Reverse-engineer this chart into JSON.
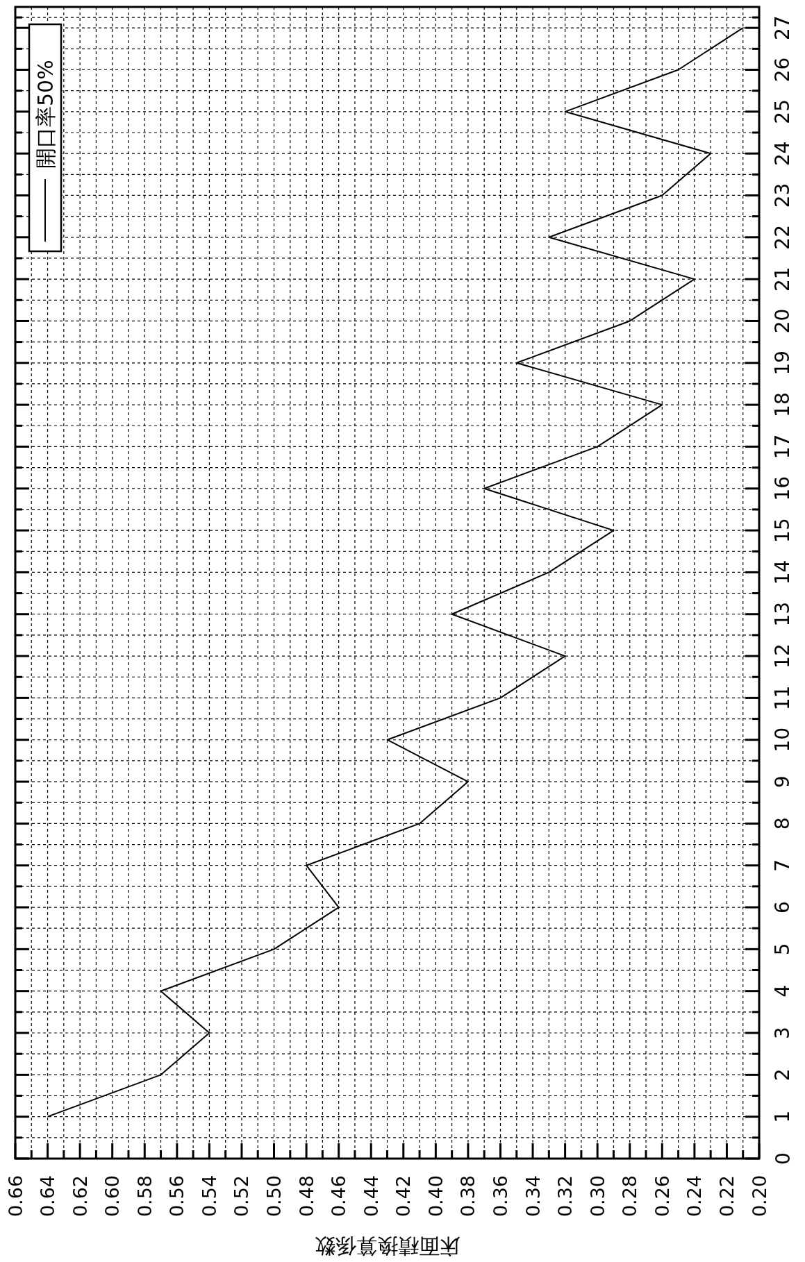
{
  "chart_data": {
    "type": "line",
    "xlabel": "床面積換算係数",
    "series": [
      {
        "name": "開口率50%",
        "color": "#000000",
        "x": [
          0.64,
          0.57,
          0.54,
          0.57,
          0.5,
          0.46,
          0.48,
          0.41,
          0.38,
          0.43,
          0.36,
          0.32,
          0.39,
          0.33,
          0.29,
          0.37,
          0.3,
          0.26,
          0.35,
          0.28,
          0.24,
          0.33,
          0.26,
          0.23,
          0.32,
          0.25,
          0.21
        ],
        "values": [
          1,
          2,
          3,
          4,
          5,
          6,
          7,
          8,
          9,
          10,
          11,
          12,
          13,
          14,
          15,
          16,
          17,
          18,
          19,
          20,
          21,
          22,
          23,
          24,
          25,
          26,
          27
        ]
      }
    ],
    "ylim": [
      0,
      27.5
    ],
    "yticks": [
      0,
      1,
      2,
      3,
      4,
      5,
      6,
      7,
      8,
      9,
      10,
      11,
      12,
      13,
      14,
      15,
      16,
      17,
      18,
      19,
      20,
      21,
      22,
      23,
      24,
      25,
      26,
      27
    ],
    "xlim": [
      0.66,
      0.2
    ],
    "xticks": [
      {
        "value": 0.66,
        "label": "0.66"
      },
      {
        "value": 0.64,
        "label": "0.64"
      },
      {
        "value": 0.62,
        "label": "0.62"
      },
      {
        "value": 0.6,
        "label": "0.60"
      },
      {
        "value": 0.58,
        "label": "0.58"
      },
      {
        "value": 0.56,
        "label": "0.56"
      },
      {
        "value": 0.54,
        "label": "0.54"
      },
      {
        "value": 0.52,
        "label": "0.52"
      },
      {
        "value": 0.5,
        "label": "0.50"
      },
      {
        "value": 0.48,
        "label": "0.48"
      },
      {
        "value": 0.46,
        "label": "0.46"
      },
      {
        "value": 0.44,
        "label": "0.44"
      },
      {
        "value": 0.42,
        "label": "0.42"
      },
      {
        "value": 0.4,
        "label": "0.40"
      },
      {
        "value": 0.38,
        "label": "0.38"
      },
      {
        "value": 0.36,
        "label": "0.36"
      },
      {
        "value": 0.34,
        "label": "0.34"
      },
      {
        "value": 0.32,
        "label": "0.32"
      },
      {
        "value": 0.3,
        "label": "0.30"
      },
      {
        "value": 0.28,
        "label": "0.28"
      },
      {
        "value": 0.26,
        "label": "0.26"
      },
      {
        "value": 0.24,
        "label": "0.24"
      },
      {
        "value": 0.22,
        "label": "0.22"
      },
      {
        "value": 0.2,
        "label": "0.20"
      }
    ],
    "grid": true,
    "legend": "top left",
    "line_style": "solid"
  }
}
